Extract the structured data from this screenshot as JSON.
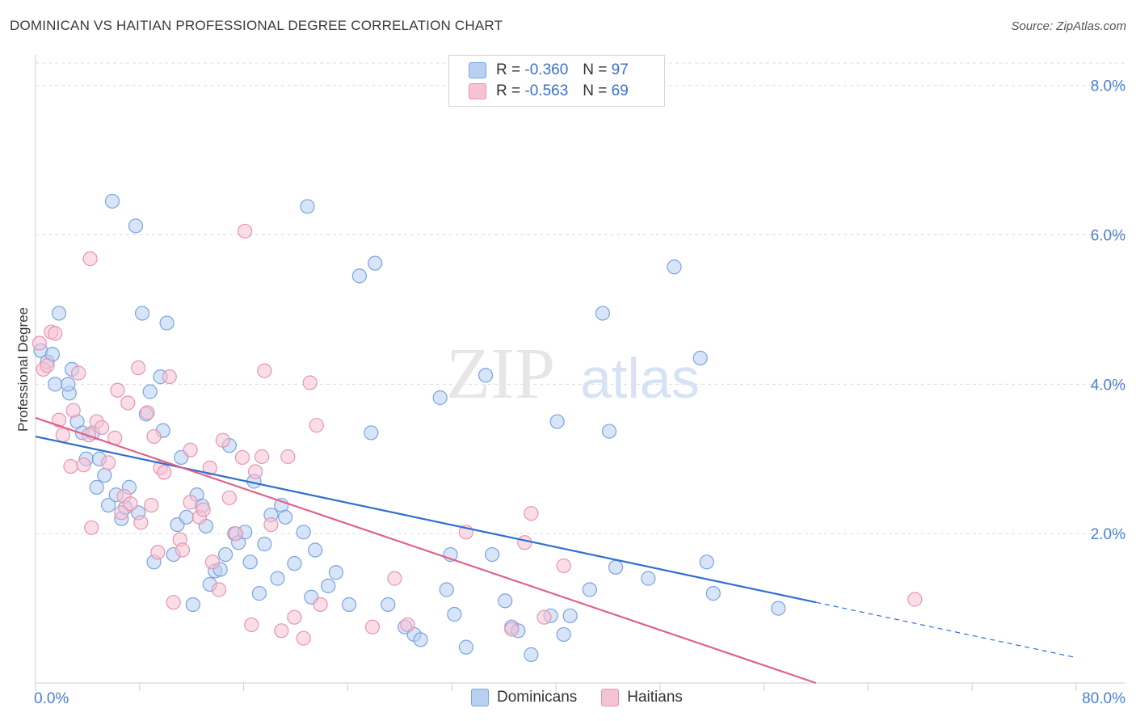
{
  "title": "DOMINICAN VS HAITIAN PROFESSIONAL DEGREE CORRELATION CHART",
  "source": "Source: ZipAtlas.com",
  "colors": {
    "blue_fill": "#b8d0f2",
    "blue_stroke": "#7aa3df",
    "blue_line": "#2f6fcf",
    "pink_fill": "#f6c3d3",
    "pink_stroke": "#e993b0",
    "pink_line": "#e0608a",
    "tick_text": "#4a7fd4",
    "grid": "#dcdcdc"
  },
  "legend": {
    "rows": [
      {
        "r_label": "R =",
        "r_value": "-0.360",
        "n_label": "N =",
        "n_value": "97"
      },
      {
        "r_label": "R =",
        "r_value": "-0.563",
        "n_label": "N =",
        "n_value": "69"
      }
    ]
  },
  "bottom_legend": [
    "Dominicans",
    "Haitians"
  ],
  "watermark": {
    "zip": "ZIP",
    "atlas": "atlas"
  },
  "chart_data": {
    "type": "scatter",
    "title": "DOMINICAN VS HAITIAN PROFESSIONAL DEGREE CORRELATION CHART",
    "xlabel": "",
    "ylabel": "Professional Degree",
    "xlim": [
      0,
      80
    ],
    "ylim": [
      0,
      8.3
    ],
    "x_tick_labels": [
      "0.0%",
      "80.0%"
    ],
    "y_ticks": [
      2,
      4,
      6,
      8
    ],
    "y_tick_labels": [
      "2.0%",
      "4.0%",
      "6.0%",
      "8.0%"
    ],
    "grid": true,
    "series": [
      {
        "name": "Dominicans",
        "r": -0.36,
        "n": 97,
        "trend": {
          "x0": 0,
          "y0": 3.3,
          "x1": 60,
          "y1": 1.08,
          "dash_to_x": 80,
          "dash_to_y": 0.34
        },
        "points": [
          [
            0.4,
            4.45
          ],
          [
            0.9,
            4.3
          ],
          [
            1.3,
            4.4
          ],
          [
            1.8,
            4.95
          ],
          [
            1.5,
            4
          ],
          [
            2.6,
            3.88
          ],
          [
            2.8,
            4.2
          ],
          [
            2.5,
            4
          ],
          [
            3.2,
            3.5
          ],
          [
            3.6,
            3.35
          ],
          [
            3.9,
            3
          ],
          [
            4.4,
            3.35
          ],
          [
            4.7,
            2.62
          ],
          [
            4.9,
            3
          ],
          [
            5.3,
            2.78
          ],
          [
            5.6,
            2.38
          ],
          [
            5.9,
            6.45
          ],
          [
            6.2,
            2.52
          ],
          [
            6.6,
            2.2
          ],
          [
            6.9,
            2.35
          ],
          [
            7.2,
            2.62
          ],
          [
            7.7,
            6.12
          ],
          [
            7.9,
            2.28
          ],
          [
            8.2,
            4.95
          ],
          [
            8.5,
            3.6
          ],
          [
            8.8,
            3.9
          ],
          [
            9.1,
            1.62
          ],
          [
            9.6,
            4.1
          ],
          [
            9.8,
            3.38
          ],
          [
            10.1,
            4.82
          ],
          [
            10.6,
            1.72
          ],
          [
            10.9,
            2.12
          ],
          [
            11.2,
            3.02
          ],
          [
            11.6,
            2.22
          ],
          [
            12.1,
            1.05
          ],
          [
            12.4,
            2.52
          ],
          [
            12.8,
            2.37
          ],
          [
            13.1,
            2.1
          ],
          [
            13.4,
            1.32
          ],
          [
            13.8,
            1.5
          ],
          [
            14.2,
            1.52
          ],
          [
            14.6,
            1.72
          ],
          [
            14.9,
            3.18
          ],
          [
            15.3,
            2
          ],
          [
            15.6,
            1.88
          ],
          [
            16.1,
            2.02
          ],
          [
            16.5,
            1.62
          ],
          [
            16.8,
            2.7
          ],
          [
            17.2,
            1.2
          ],
          [
            17.6,
            1.86
          ],
          [
            18.1,
            2.25
          ],
          [
            18.6,
            1.4
          ],
          [
            18.9,
            2.38
          ],
          [
            19.2,
            2.22
          ],
          [
            19.9,
            1.6
          ],
          [
            20.6,
            2.02
          ],
          [
            20.9,
            6.38
          ],
          [
            21.5,
            1.78
          ],
          [
            21.2,
            1.15
          ],
          [
            22.5,
            1.3
          ],
          [
            23.1,
            1.48
          ],
          [
            24.1,
            1.05
          ],
          [
            24.9,
            5.45
          ],
          [
            25.8,
            3.35
          ],
          [
            26.1,
            5.62
          ],
          [
            27.1,
            1.05
          ],
          [
            28.4,
            0.75
          ],
          [
            29.1,
            0.65
          ],
          [
            29.6,
            0.58
          ],
          [
            31.1,
            3.82
          ],
          [
            31.6,
            1.25
          ],
          [
            31.9,
            1.72
          ],
          [
            32.2,
            0.92
          ],
          [
            33.1,
            0.48
          ],
          [
            34.6,
            4.12
          ],
          [
            35.1,
            1.72
          ],
          [
            36.1,
            1.1
          ],
          [
            36.6,
            0.75
          ],
          [
            37.1,
            0.7
          ],
          [
            38.1,
            0.38
          ],
          [
            39.6,
            0.9
          ],
          [
            40.1,
            3.5
          ],
          [
            40.6,
            0.65
          ],
          [
            41.1,
            0.9
          ],
          [
            42.6,
            1.25
          ],
          [
            43.6,
            4.95
          ],
          [
            44.1,
            3.37
          ],
          [
            44.6,
            1.55
          ],
          [
            47.1,
            1.4
          ],
          [
            49.1,
            5.57
          ],
          [
            51.1,
            4.35
          ],
          [
            51.6,
            1.62
          ],
          [
            52.1,
            1.2
          ],
          [
            57.1,
            1
          ]
        ]
      },
      {
        "name": "Haitians",
        "r": -0.563,
        "n": 69,
        "trend": {
          "x0": 0,
          "y0": 3.55,
          "x1": 60,
          "y1": 0
        },
        "points": [
          [
            0.3,
            4.55
          ],
          [
            0.6,
            4.2
          ],
          [
            0.9,
            4.25
          ],
          [
            1.2,
            4.7
          ],
          [
            1.5,
            4.68
          ],
          [
            1.8,
            3.52
          ],
          [
            2.1,
            3.32
          ],
          [
            2.7,
            2.9
          ],
          [
            2.9,
            3.65
          ],
          [
            3.3,
            4.15
          ],
          [
            3.7,
            2.92
          ],
          [
            4.1,
            3.32
          ],
          [
            4.3,
            2.08
          ],
          [
            4.7,
            3.5
          ],
          [
            5.1,
            3.42
          ],
          [
            5.6,
            2.95
          ],
          [
            6.1,
            3.28
          ],
          [
            6.3,
            3.92
          ],
          [
            6.8,
            2.5
          ],
          [
            6.6,
            2.28
          ],
          [
            7.1,
            3.75
          ],
          [
            7.3,
            2.4
          ],
          [
            7.9,
            4.22
          ],
          [
            8.1,
            2.15
          ],
          [
            8.6,
            3.62
          ],
          [
            8.9,
            2.38
          ],
          [
            9.1,
            3.3
          ],
          [
            9.4,
            1.75
          ],
          [
            9.6,
            2.88
          ],
          [
            9.9,
            2.82
          ],
          [
            10.3,
            4.1
          ],
          [
            10.6,
            1.08
          ],
          [
            11.1,
            1.92
          ],
          [
            11.3,
            1.78
          ],
          [
            11.9,
            3.12
          ],
          [
            11.9,
            2.42
          ],
          [
            12.6,
            2.22
          ],
          [
            12.9,
            2.32
          ],
          [
            13.4,
            2.88
          ],
          [
            13.6,
            1.62
          ],
          [
            14.1,
            1.25
          ],
          [
            14.4,
            3.25
          ],
          [
            14.9,
            2.48
          ],
          [
            15.4,
            2
          ],
          [
            15.9,
            3.02
          ],
          [
            16.1,
            6.05
          ],
          [
            16.6,
            0.78
          ],
          [
            16.9,
            2.83
          ],
          [
            17.4,
            3.03
          ],
          [
            17.6,
            4.18
          ],
          [
            18.1,
            2.12
          ],
          [
            18.9,
            0.7
          ],
          [
            19.4,
            3.03
          ],
          [
            19.9,
            0.88
          ],
          [
            20.6,
            0.6
          ],
          [
            21.1,
            4.02
          ],
          [
            21.6,
            3.45
          ],
          [
            21.9,
            1.05
          ],
          [
            25.9,
            0.75
          ],
          [
            27.6,
            1.4
          ],
          [
            28.6,
            0.78
          ],
          [
            33.1,
            2.02
          ],
          [
            36.6,
            0.72
          ],
          [
            37.6,
            1.88
          ],
          [
            38.1,
            2.27
          ],
          [
            39.1,
            0.88
          ],
          [
            40.6,
            1.57
          ],
          [
            67.6,
            1.12
          ],
          [
            4.2,
            5.68
          ]
        ]
      }
    ]
  }
}
